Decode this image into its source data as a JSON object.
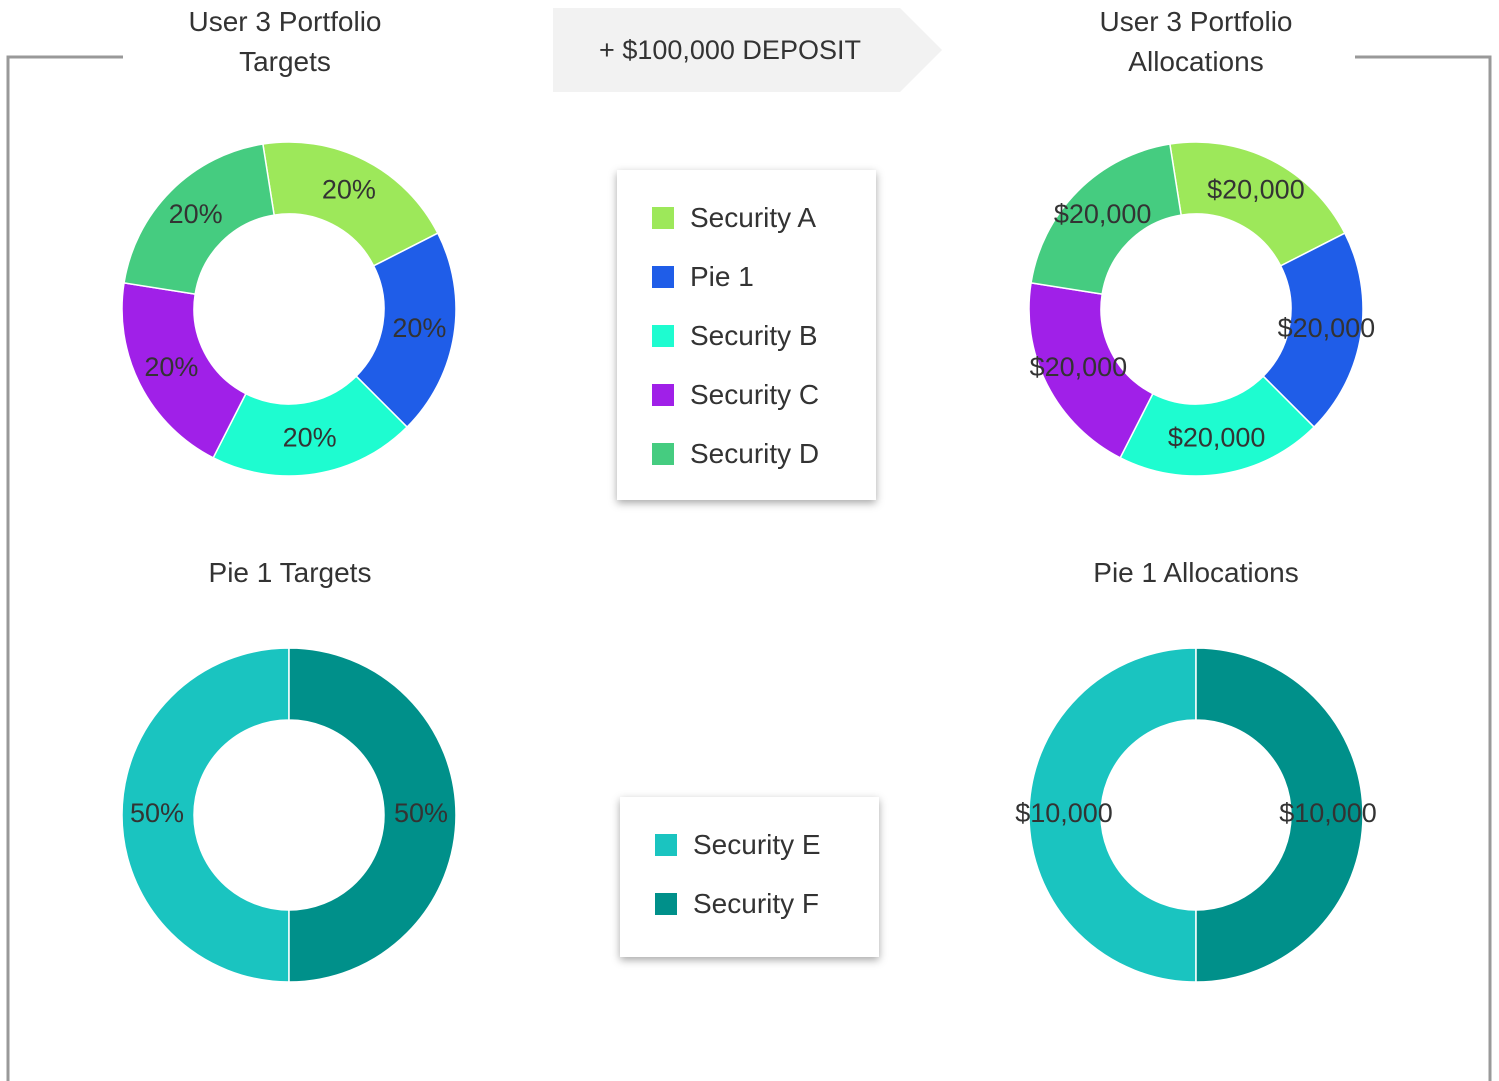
{
  "banner": "+ $100,000 DEPOSIT",
  "chart_data": [
    {
      "type": "donut",
      "title": "User 3 Portfolio Targets",
      "categories": [
        "Security A",
        "Pie 1",
        "Security B",
        "Security C",
        "Security D"
      ],
      "colors": [
        "#9de85a",
        "#1f5de8",
        "#1efcd0",
        "#a020e8",
        "#45cc80"
      ],
      "values": [
        20,
        20,
        20,
        20,
        20
      ],
      "value_labels": [
        "20%",
        "20%",
        "20%",
        "20%",
        "20%"
      ]
    },
    {
      "type": "donut",
      "title": "User 3 Portfolio Allocations",
      "colors": [
        "#9de85a",
        "#1f5de8",
        "#1efcd0",
        "#a020e8",
        "#45cc80"
      ],
      "values": [
        20000,
        20000,
        20000,
        20000,
        20000
      ],
      "value_labels": [
        "$20,000",
        "$20,000",
        "$20,000",
        "$20,000",
        "$20,000"
      ]
    },
    {
      "type": "donut",
      "title": "Pie 1 Targets",
      "categories": [
        "Security E",
        "Security F"
      ],
      "colors": [
        "#1ac4c0",
        "#00908a"
      ],
      "values": [
        50,
        50
      ],
      "value_labels": [
        "50%",
        "50%"
      ]
    },
    {
      "type": "donut",
      "title": "Pie 1 Allocations",
      "colors": [
        "#1ac4c0",
        "#00908a"
      ],
      "values": [
        10000,
        10000
      ],
      "value_labels": [
        "$10,000",
        "$10,000"
      ]
    }
  ]
}
